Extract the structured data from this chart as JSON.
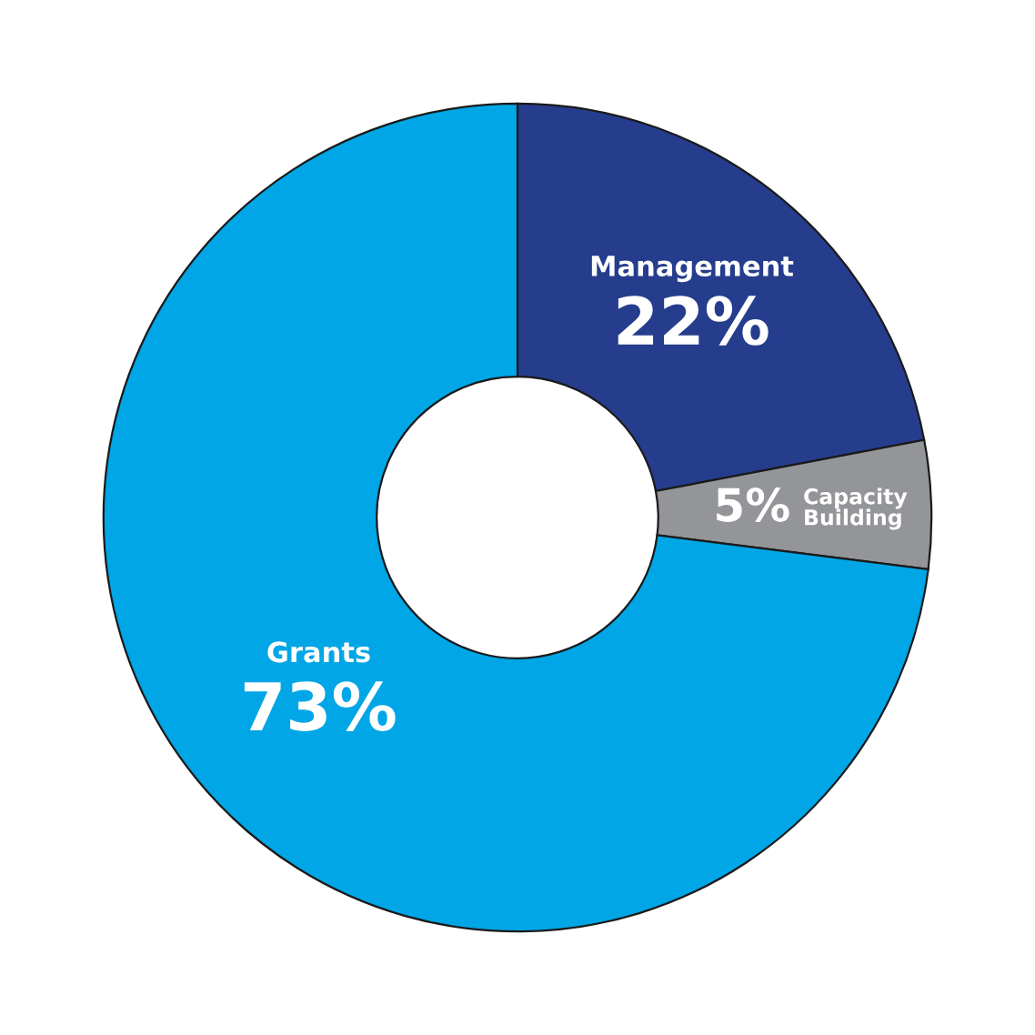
{
  "chart_data": {
    "type": "donut",
    "categories": [
      "Management",
      "Capacity\nBuilding",
      "Grants"
    ],
    "values": [
      22,
      5,
      73
    ],
    "value_labels": [
      "22%",
      "5%",
      "73%"
    ],
    "colors": [
      "#253d8c",
      "#939598",
      "#00a6e6"
    ],
    "legend": false
  }
}
